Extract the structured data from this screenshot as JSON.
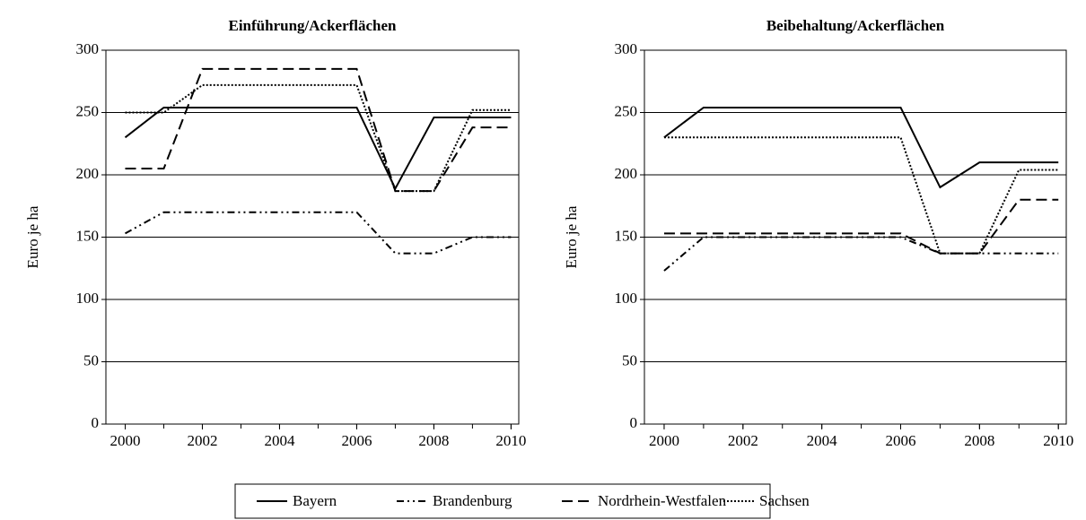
{
  "chart_data": [
    {
      "type": "line",
      "title": "Einführung/Ackerflächen",
      "ylabel": "Euro je ha",
      "x": [
        2000,
        2001,
        2002,
        2003,
        2004,
        2005,
        2006,
        2007,
        2008,
        2009,
        2010
      ],
      "xlim": [
        1999.5,
        2010.2
      ],
      "xticks": [
        2000,
        2002,
        2004,
        2006,
        2008,
        2010
      ],
      "ylim": [
        0,
        300
      ],
      "yticks": [
        0,
        50,
        100,
        150,
        200,
        250,
        300
      ],
      "grid": true,
      "series": [
        {
          "name": "Bayern",
          "color": "#000000",
          "dash": "solid",
          "values": [
            230,
            254,
            254,
            254,
            254,
            254,
            254,
            189,
            246,
            246,
            246
          ]
        },
        {
          "name": "Brandenburg",
          "color": "#000000",
          "dash": "dashdotdot",
          "values": [
            153,
            170,
            170,
            170,
            170,
            170,
            170,
            137,
            137,
            150,
            150
          ]
        },
        {
          "name": "Nordrhein-Westfalen",
          "color": "#000000",
          "dash": "dashed",
          "values": [
            205,
            205,
            285,
            285,
            285,
            285,
            285,
            187,
            187,
            238,
            238
          ]
        },
        {
          "name": "Sachsen",
          "color": "#000000",
          "dash": "dotted",
          "values": [
            250,
            250,
            272,
            272,
            272,
            272,
            272,
            187,
            187,
            252,
            252
          ]
        }
      ]
    },
    {
      "type": "line",
      "title": "Beibehaltung/Ackerflächen",
      "ylabel": "Euro je ha",
      "x": [
        2000,
        2001,
        2002,
        2003,
        2004,
        2005,
        2006,
        2007,
        2008,
        2009,
        2010
      ],
      "xlim": [
        1999.5,
        2010.2
      ],
      "xticks": [
        2000,
        2002,
        2004,
        2006,
        2008,
        2010
      ],
      "ylim": [
        0,
        300
      ],
      "yticks": [
        0,
        50,
        100,
        150,
        200,
        250,
        300
      ],
      "grid": true,
      "series": [
        {
          "values": [
            230,
            254,
            254,
            254,
            254,
            254,
            254,
            190,
            210,
            210,
            210
          ]
        },
        {
          "values": [
            123,
            150,
            150,
            150,
            150,
            150,
            150,
            137,
            137,
            137,
            137
          ]
        },
        {
          "values": [
            153,
            153,
            153,
            153,
            153,
            153,
            153,
            137,
            137,
            180,
            180
          ]
        },
        {
          "values": [
            230,
            230,
            230,
            230,
            230,
            230,
            230,
            137,
            137,
            204,
            204
          ]
        }
      ]
    }
  ]
}
